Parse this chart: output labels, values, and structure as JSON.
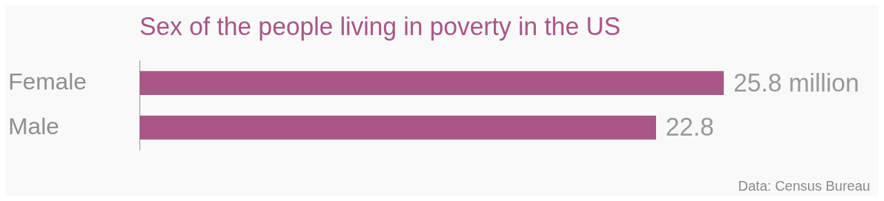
{
  "chart_data": {
    "type": "bar",
    "orientation": "horizontal",
    "title": "Sex of the people living in poverty in the US",
    "categories": [
      "Female",
      "Male"
    ],
    "series": [
      {
        "color": "#a85787",
        "values": [
          25.8,
          22.8
        ],
        "value_labels": [
          "25.8 million",
          "22.8"
        ]
      }
    ],
    "annotations": [
      "Data: Census Bureau"
    ]
  }
}
